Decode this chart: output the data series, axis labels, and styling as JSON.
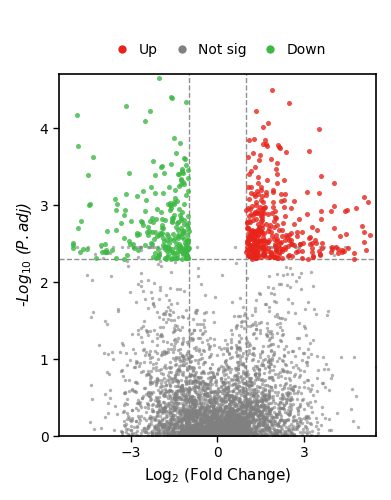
{
  "xlabel": "Log$_2$ (Fold Change)",
  "ylabel": "-Log$_{10}$ ($\\mathit{P.adj}$)",
  "xlim": [
    -5.5,
    5.5
  ],
  "ylim": [
    0,
    4.7
  ],
  "xticks": [
    -3,
    0,
    3
  ],
  "yticks": [
    0,
    1,
    2,
    3,
    4
  ],
  "fc_threshold": 1.0,
  "pval_threshold": 2.3,
  "up_color": "#E8241A",
  "down_color": "#3CB943",
  "ns_color": "#808080",
  "point_size": 6,
  "alpha": 0.8,
  "dashed_color": "#909090",
  "legend_labels": [
    "Up",
    "Not sig",
    "Down"
  ],
  "legend_colors": [
    "#E8241A",
    "#808080",
    "#3CB943"
  ],
  "seed": 42,
  "n_ns": 4000,
  "n_up": 300,
  "n_down": 220
}
